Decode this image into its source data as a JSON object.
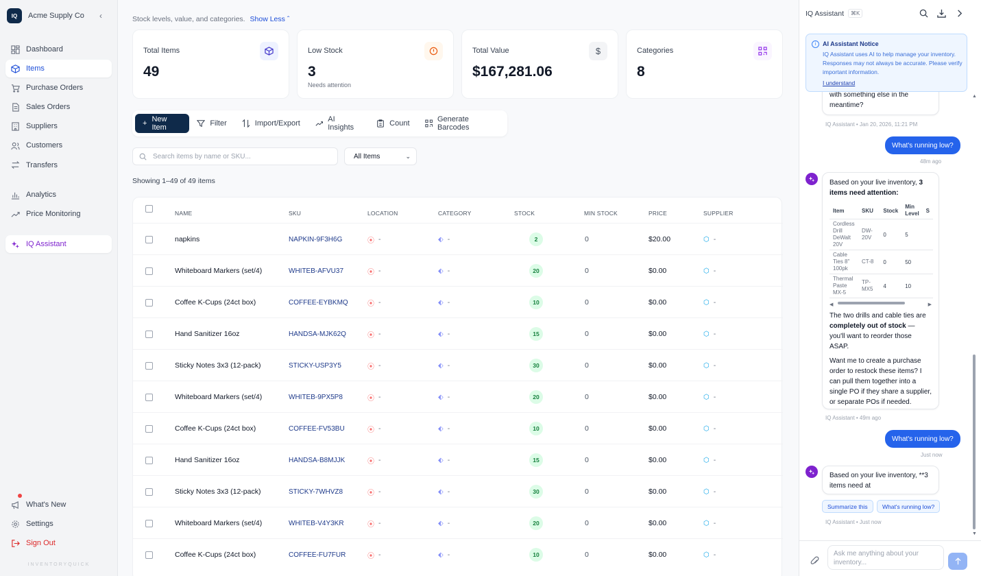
{
  "sidebar": {
    "brand": "Acme Supply Co",
    "logo": "IQ",
    "items": [
      {
        "label": "Dashboard",
        "icon": "dashboard-icon"
      },
      {
        "label": "Items",
        "icon": "cube-icon"
      },
      {
        "label": "Purchase Orders",
        "icon": "cart-icon"
      },
      {
        "label": "Sales Orders",
        "icon": "receipt-icon"
      },
      {
        "label": "Suppliers",
        "icon": "building-icon"
      },
      {
        "label": "Customers",
        "icon": "users-icon"
      },
      {
        "label": "Transfers",
        "icon": "transfer-icon"
      }
    ],
    "items2": [
      {
        "label": "Analytics",
        "icon": "bar-chart-icon"
      },
      {
        "label": "Price Monitoring",
        "icon": "trend-icon"
      }
    ],
    "iq": "IQ Assistant",
    "bottom": [
      {
        "label": "What's New",
        "icon": "megaphone-icon"
      },
      {
        "label": "Settings",
        "icon": "gear-icon"
      },
      {
        "label": "Sign Out",
        "icon": "sign-out-icon"
      }
    ],
    "footer": "INVENTORYQUICK"
  },
  "main": {
    "subtitle": "Stock levels, value, and categories.",
    "toggle": "Show Less",
    "cards": [
      {
        "label": "Total Items",
        "value": "49",
        "sub": "",
        "icon": "cube-icon"
      },
      {
        "label": "Low Stock",
        "value": "3",
        "sub": "Needs attention",
        "icon": "alert-icon"
      },
      {
        "label": "Total Value",
        "value": "$167,281.06",
        "sub": "",
        "icon": "dollar-icon"
      },
      {
        "label": "Categories",
        "value": "8",
        "sub": "",
        "icon": "qr-icon"
      }
    ],
    "toolbar": {
      "new_item": "New Item",
      "filter": "Filter",
      "import_export": "Import/Export",
      "ai_insights": "AI Insights",
      "count": "Count",
      "barcodes": "Generate Barcodes"
    },
    "search_placeholder": "Search items by name or SKU...",
    "filter_value": "All Items",
    "showing": "Showing 1–49 of 49 items",
    "columns": [
      "NAME",
      "SKU",
      "LOCATION",
      "CATEGORY",
      "STOCK",
      "MIN STOCK",
      "PRICE",
      "SUPPLIER"
    ],
    "rows": [
      {
        "name": "napkins",
        "sku": "NAPKIN-9F3H6G",
        "location": "-",
        "category": "-",
        "stock": "2",
        "min": "0",
        "price": "$20.00",
        "supplier": "-"
      },
      {
        "name": "Whiteboard Markers (set/4)",
        "sku": "WHITEB-AFVU37",
        "location": "-",
        "category": "-",
        "stock": "20",
        "min": "0",
        "price": "$0.00",
        "supplier": "-"
      },
      {
        "name": "Coffee K-Cups (24ct box)",
        "sku": "COFFEE-EYBKMQ",
        "location": "-",
        "category": "-",
        "stock": "10",
        "min": "0",
        "price": "$0.00",
        "supplier": "-"
      },
      {
        "name": "Hand Sanitizer 16oz",
        "sku": "HANDSA-MJK62Q",
        "location": "-",
        "category": "-",
        "stock": "15",
        "min": "0",
        "price": "$0.00",
        "supplier": "-"
      },
      {
        "name": "Sticky Notes 3x3 (12-pack)",
        "sku": "STICKY-USP3Y5",
        "location": "-",
        "category": "-",
        "stock": "30",
        "min": "0",
        "price": "$0.00",
        "supplier": "-"
      },
      {
        "name": "Whiteboard Markers (set/4)",
        "sku": "WHITEB-9PX5P8",
        "location": "-",
        "category": "-",
        "stock": "20",
        "min": "0",
        "price": "$0.00",
        "supplier": "-"
      },
      {
        "name": "Coffee K-Cups (24ct box)",
        "sku": "COFFEE-FV53BU",
        "location": "-",
        "category": "-",
        "stock": "10",
        "min": "0",
        "price": "$0.00",
        "supplier": "-"
      },
      {
        "name": "Hand Sanitizer 16oz",
        "sku": "HANDSA-B8MJJK",
        "location": "-",
        "category": "-",
        "stock": "15",
        "min": "0",
        "price": "$0.00",
        "supplier": "-"
      },
      {
        "name": "Sticky Notes 3x3 (12-pack)",
        "sku": "STICKY-7WHVZ8",
        "location": "-",
        "category": "-",
        "stock": "30",
        "min": "0",
        "price": "$0.00",
        "supplier": "-"
      },
      {
        "name": "Whiteboard Markers (set/4)",
        "sku": "WHITEB-V4Y3KR",
        "location": "-",
        "category": "-",
        "stock": "20",
        "min": "0",
        "price": "$0.00",
        "supplier": "-"
      },
      {
        "name": "Coffee K-Cups (24ct box)",
        "sku": "COFFEE-FU7FUR",
        "location": "-",
        "category": "-",
        "stock": "10",
        "min": "0",
        "price": "$0.00",
        "supplier": "-"
      }
    ]
  },
  "assistant": {
    "title": "IQ Assistant",
    "shortcut": "⌘K",
    "notice": {
      "title": "AI Assistant Notice",
      "text": "IQ Assistant uses AI to help manage your inventory. Responses may not always be accurate. Please verify important information.",
      "link": "I understand"
    },
    "msg_partial": "with something else in the meantime?",
    "meta1": "IQ Assistant • Jan 20, 2026, 11:21 PM",
    "user1": "What's running low?",
    "user1_time": "48m ago",
    "ai_intro": "Based on your live inventory,",
    "ai_intro_bold": "3 items need attention:",
    "table_headers": [
      "Item",
      "SKU",
      "Stock",
      "Min Level",
      "S"
    ],
    "table_rows": [
      {
        "item": "Cordless Drill DeWalt 20V",
        "sku": "DW-20V",
        "stock": "0",
        "min": "5"
      },
      {
        "item": "Cable Ties 8\" 100pk",
        "sku": "CT-8",
        "stock": "0",
        "min": "50"
      },
      {
        "item": "Thermal Paste MX-5",
        "sku": "TP-MX5",
        "stock": "4",
        "min": "10"
      }
    ],
    "ai_p2_a": "The two drills and cable ties are",
    "ai_p2_bold": "completely out of stock",
    "ai_p2_b": "— you'll want to reorder those ASAP.",
    "ai_p3": "Want me to create a purchase order to restock these items? I can pull them together into a single PO if they share a supplier, or separate POs if needed.",
    "meta2": "IQ Assistant • 49m ago",
    "user2": "What's running low?",
    "user2_time": "Just now",
    "ai_last": "Based on your live inventory, **3 items need at",
    "chip1": "Summarize this",
    "chip2": "What's running low?",
    "meta3": "IQ Assistant • Just now",
    "input_placeholder": "Ask me anything about your inventory..."
  },
  "colors": {
    "primary": "#0f2a4a",
    "accent": "#2563eb",
    "iq": "#7e22ce",
    "danger": "#dc2626"
  }
}
